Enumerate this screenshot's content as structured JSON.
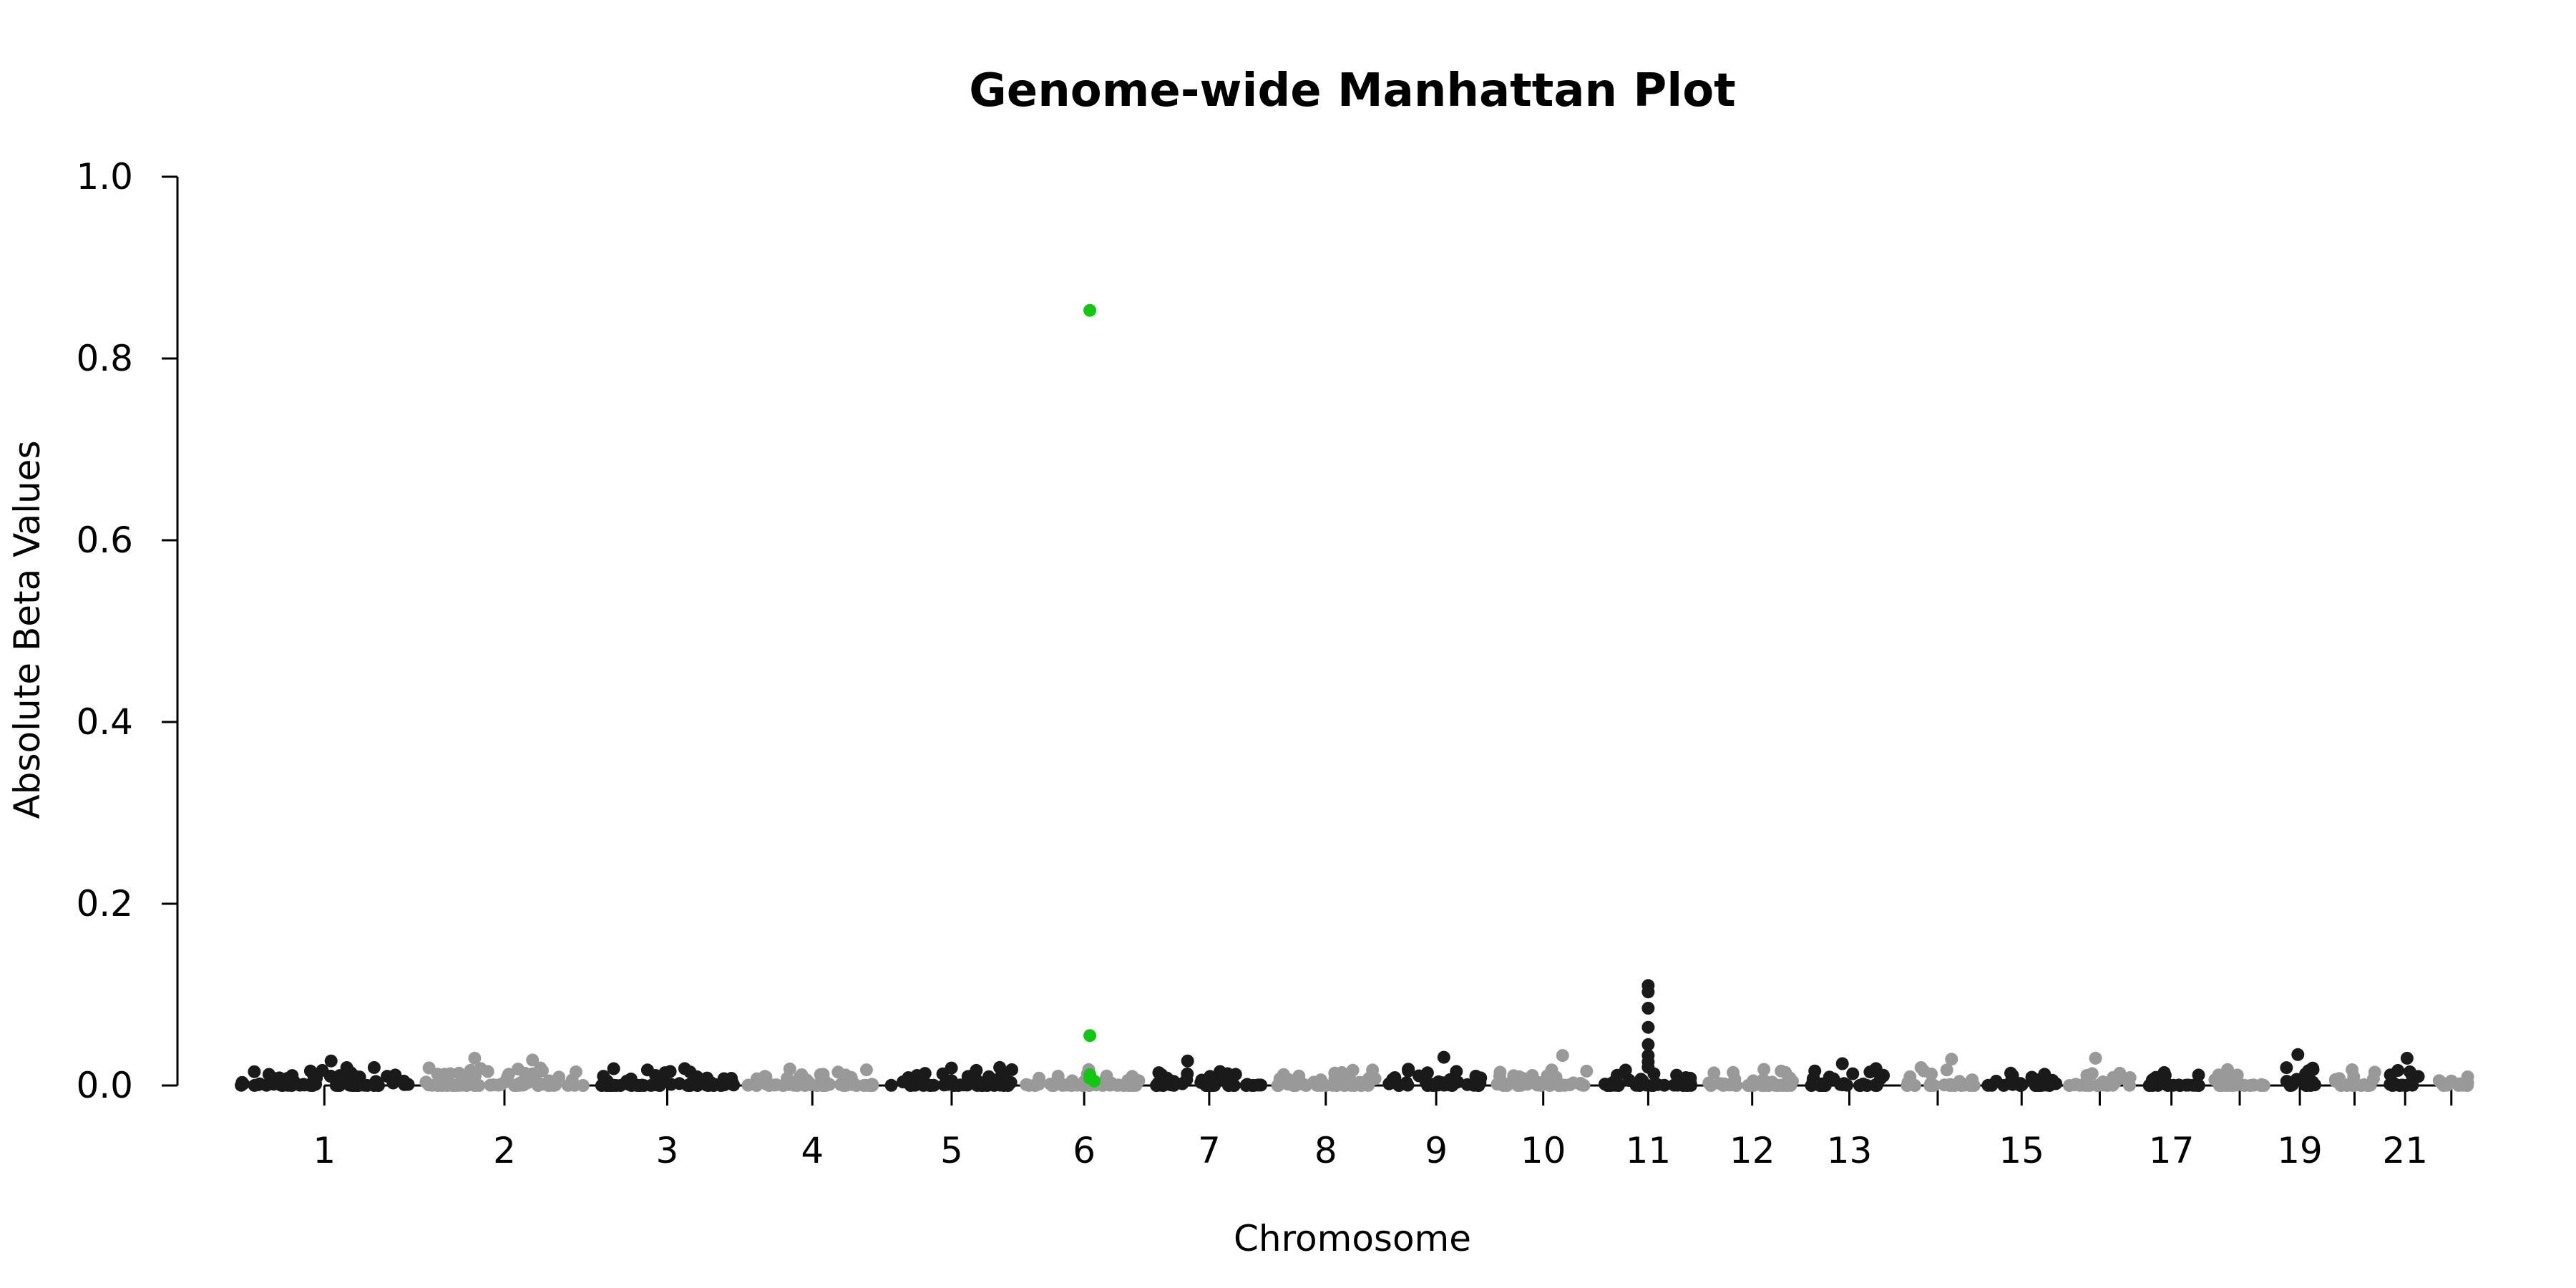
{
  "chart_data": {
    "type": "scatter",
    "title": "Genome-wide Manhattan Plot",
    "xlabel": "Chromosome",
    "ylabel": "Absolute Beta Values",
    "ylim": [
      0,
      1.0
    ],
    "y_ticks": [
      "0.0",
      "0.2",
      "0.4",
      "0.6",
      "0.8",
      "1.0"
    ],
    "x_ticks": [
      "1",
      "2",
      "3",
      "4",
      "5",
      "6",
      "7",
      "8",
      "9",
      "10",
      "11",
      "12",
      "13",
      "",
      "15",
      "",
      "17",
      "",
      "19",
      "",
      "21",
      ""
    ],
    "chromosomes": [
      1,
      2,
      3,
      4,
      5,
      6,
      7,
      8,
      9,
      10,
      11,
      12,
      13,
      14,
      15,
      16,
      17,
      18,
      19,
      20,
      21,
      22
    ],
    "colors": {
      "odd": "#1a1a1a",
      "even": "#999999",
      "highlight": "#11c711"
    },
    "grid": false,
    "legend": "none",
    "highlight_points": [
      {
        "chromosome": 6,
        "y": 0.853
      },
      {
        "chromosome": 6,
        "y": 0.055
      },
      {
        "chromosome": 6,
        "y": 0.012
      },
      {
        "chromosome": 6,
        "y": 0.008
      },
      {
        "chromosome": 6,
        "y": 0.005
      }
    ],
    "peak_points": [
      {
        "chromosome": 11,
        "y": 0.11
      },
      {
        "chromosome": 11,
        "y": 0.103
      },
      {
        "chromosome": 11,
        "y": 0.085
      },
      {
        "chromosome": 11,
        "y": 0.064
      },
      {
        "chromosome": 11,
        "y": 0.045
      },
      {
        "chromosome": 11,
        "y": 0.033
      },
      {
        "chromosome": 11,
        "y": 0.026
      },
      {
        "chromosome": 11,
        "y": 0.02
      },
      {
        "chromosome": 10,
        "y": 0.033
      },
      {
        "chromosome": 9,
        "y": 0.031
      },
      {
        "chromosome": 19,
        "y": 0.034
      },
      {
        "chromosome": 2,
        "y": 0.03
      },
      {
        "chromosome": 14,
        "y": 0.029
      },
      {
        "chromosome": 21,
        "y": 0.03
      },
      {
        "chromosome": 16,
        "y": 0.03
      },
      {
        "chromosome": 7,
        "y": 0.027
      },
      {
        "chromosome": 2,
        "y": 0.028
      },
      {
        "chromosome": 1,
        "y": 0.027
      },
      {
        "chromosome": 13,
        "y": 0.024
      }
    ],
    "background_range": [
      0,
      0.02
    ]
  }
}
